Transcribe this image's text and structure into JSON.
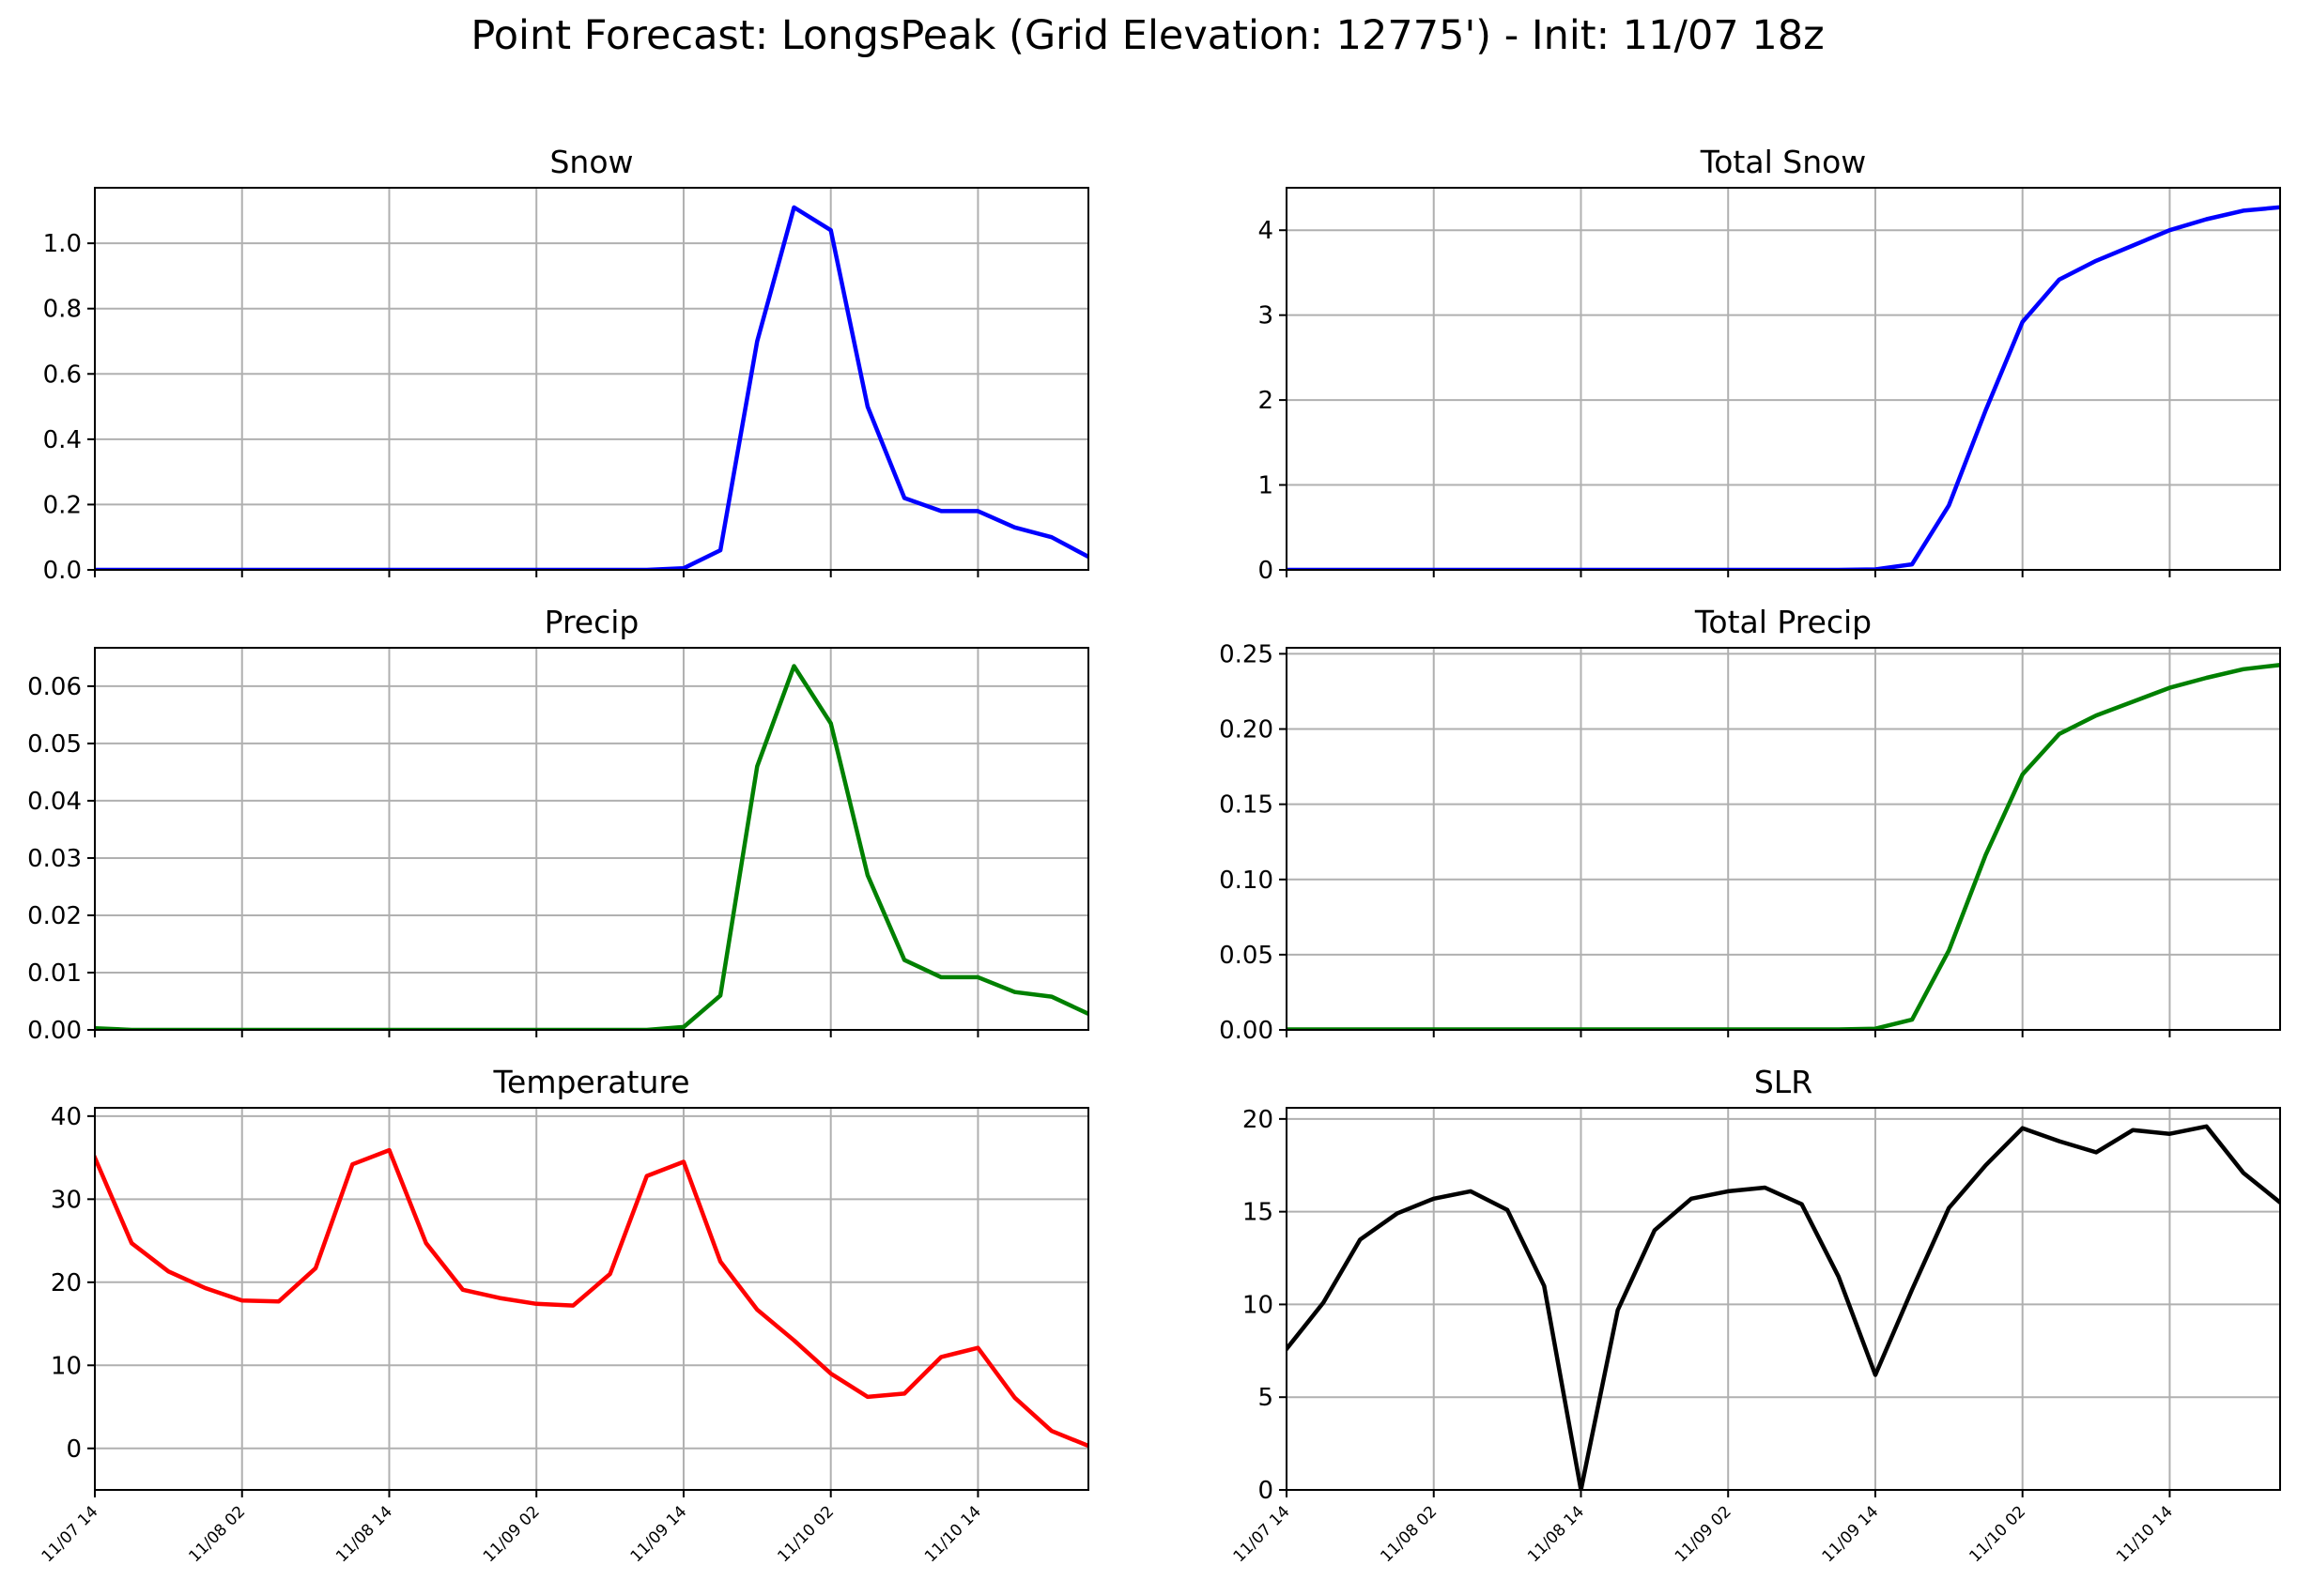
{
  "suptitle": "Point Forecast: LongsPeak (Grid Elevation: 12775') - Init: 11/07 18z",
  "x_tick_labels": [
    "11/07 14",
    "11/08 02",
    "11/08 14",
    "11/09 02",
    "11/09 14",
    "11/10 02",
    "11/10 14"
  ],
  "chart_data": [
    {
      "type": "line",
      "title": "Snow",
      "color": "#0000ff",
      "x_hours": [
        0,
        3,
        6,
        9,
        12,
        15,
        18,
        21,
        24,
        27,
        30,
        33,
        36,
        39,
        42,
        45,
        48,
        51,
        54,
        57,
        60,
        63,
        66,
        69,
        72,
        75,
        78,
        81
      ],
      "values": [
        0,
        0,
        0,
        0,
        0,
        0,
        0,
        0,
        0,
        0,
        0,
        0,
        0,
        0,
        0,
        0,
        0.005,
        0.06,
        0.7,
        1.11,
        1.04,
        0.5,
        0.22,
        0.18,
        0.18,
        0.13,
        0.1,
        0.04
      ],
      "ylim": [
        0,
        1.17
      ],
      "yticks": [
        0,
        0.2,
        0.4,
        0.6,
        0.8,
        1.0
      ],
      "ytick_labels": [
        "0.0",
        "0.2",
        "0.4",
        "0.6",
        "0.8",
        "1.0"
      ],
      "xlabel": "",
      "ylabel": "",
      "grid": true
    },
    {
      "type": "line",
      "title": "Total Snow",
      "color": "#0000ff",
      "x_hours": [
        0,
        3,
        6,
        9,
        12,
        15,
        18,
        21,
        24,
        27,
        30,
        33,
        36,
        39,
        42,
        45,
        48,
        51,
        54,
        57,
        60,
        63,
        66,
        69,
        72,
        75,
        78,
        81
      ],
      "values": [
        0,
        0,
        0,
        0,
        0,
        0,
        0,
        0,
        0,
        0,
        0,
        0,
        0,
        0,
        0,
        0,
        0.005,
        0.065,
        0.76,
        1.88,
        2.92,
        3.42,
        3.64,
        3.82,
        4.0,
        4.13,
        4.23,
        4.27
      ],
      "ylim": [
        0,
        4.5
      ],
      "yticks": [
        0,
        1,
        2,
        3,
        4
      ],
      "ytick_labels": [
        "0",
        "1",
        "2",
        "3",
        "4"
      ],
      "xlabel": "",
      "ylabel": "",
      "grid": true
    },
    {
      "type": "line",
      "title": "Precip",
      "color": "#008000",
      "x_hours": [
        0,
        3,
        6,
        9,
        12,
        15,
        18,
        21,
        24,
        27,
        30,
        33,
        36,
        39,
        42,
        45,
        48,
        51,
        54,
        57,
        60,
        63,
        66,
        69,
        72,
        75,
        78,
        81
      ],
      "values": [
        0.0003,
        0,
        0,
        0,
        0,
        0,
        0,
        0,
        0,
        0,
        0,
        0,
        0,
        0,
        0,
        0,
        0.0005,
        0.006,
        0.046,
        0.0635,
        0.0535,
        0.027,
        0.0122,
        0.0092,
        0.0092,
        0.0066,
        0.0058,
        0.0028
      ],
      "ylim": [
        0,
        0.0667
      ],
      "yticks": [
        0,
        0.01,
        0.02,
        0.03,
        0.04,
        0.05,
        0.06
      ],
      "ytick_labels": [
        "0.00",
        "0.01",
        "0.02",
        "0.03",
        "0.04",
        "0.05",
        "0.06"
      ],
      "xlabel": "",
      "ylabel": "",
      "grid": true
    },
    {
      "type": "line",
      "title": "Total Precip",
      "color": "#008000",
      "x_hours": [
        0,
        3,
        6,
        9,
        12,
        15,
        18,
        21,
        24,
        27,
        30,
        33,
        36,
        39,
        42,
        45,
        48,
        51,
        54,
        57,
        60,
        63,
        66,
        69,
        72,
        75,
        78,
        81
      ],
      "values": [
        0.0003,
        0.0003,
        0.0003,
        0.0003,
        0.0003,
        0.0003,
        0.0003,
        0.0003,
        0.0003,
        0.0003,
        0.0003,
        0.0003,
        0.0003,
        0.0003,
        0.0003,
        0.0003,
        0.0008,
        0.0068,
        0.0528,
        0.1163,
        0.1698,
        0.1968,
        0.209,
        0.2182,
        0.2274,
        0.234,
        0.2398,
        0.2426
      ],
      "ylim": [
        0,
        0.254
      ],
      "yticks": [
        0,
        0.05,
        0.1,
        0.15,
        0.2,
        0.25
      ],
      "ytick_labels": [
        "0.00",
        "0.05",
        "0.10",
        "0.15",
        "0.20",
        "0.25"
      ],
      "xlabel": "",
      "ylabel": "",
      "grid": true
    },
    {
      "type": "line",
      "title": "Temperature",
      "color": "#ff0000",
      "x_hours": [
        0,
        3,
        6,
        9,
        12,
        15,
        18,
        21,
        24,
        27,
        30,
        33,
        36,
        39,
        42,
        45,
        48,
        51,
        54,
        57,
        60,
        63,
        66,
        69,
        72,
        75,
        78,
        81
      ],
      "values": [
        35,
        24.7,
        21.3,
        19.3,
        17.8,
        17.7,
        21.7,
        34.2,
        35.9,
        24.7,
        19.1,
        18.1,
        17.4,
        17.2,
        21,
        32.8,
        34.5,
        22.5,
        16.7,
        13,
        9,
        6.2,
        6.6,
        11,
        12.1,
        6.1,
        2.1,
        0.3
      ],
      "ylim": [
        -5,
        41
      ],
      "yticks": [
        0,
        10,
        20,
        30,
        40
      ],
      "ytick_labels": [
        "0",
        "10",
        "20",
        "30",
        "40"
      ],
      "xlabel": "",
      "ylabel": "",
      "grid": true
    },
    {
      "type": "line",
      "title": "SLR",
      "color": "#000000",
      "x_hours": [
        0,
        3,
        6,
        9,
        12,
        15,
        18,
        21,
        24,
        27,
        30,
        33,
        36,
        39,
        42,
        45,
        48,
        51,
        54,
        57,
        60,
        63,
        66,
        69,
        72,
        75,
        78,
        81
      ],
      "values": [
        7.6,
        10.1,
        13.5,
        14.9,
        15.7,
        16.1,
        15.1,
        11,
        0,
        9.7,
        14,
        15.7,
        16.1,
        16.3,
        15.4,
        11.5,
        6.2,
        10.8,
        15.2,
        17.5,
        19.5,
        18.8,
        18.2,
        19.4,
        19.2,
        19.6,
        17.1,
        15.5
      ],
      "ylim": [
        0,
        20.6
      ],
      "yticks": [
        0,
        5,
        10,
        15,
        20
      ],
      "ytick_labels": [
        "0",
        "5",
        "10",
        "15",
        "20"
      ],
      "xlabel": "",
      "ylabel": "",
      "grid": true
    }
  ]
}
